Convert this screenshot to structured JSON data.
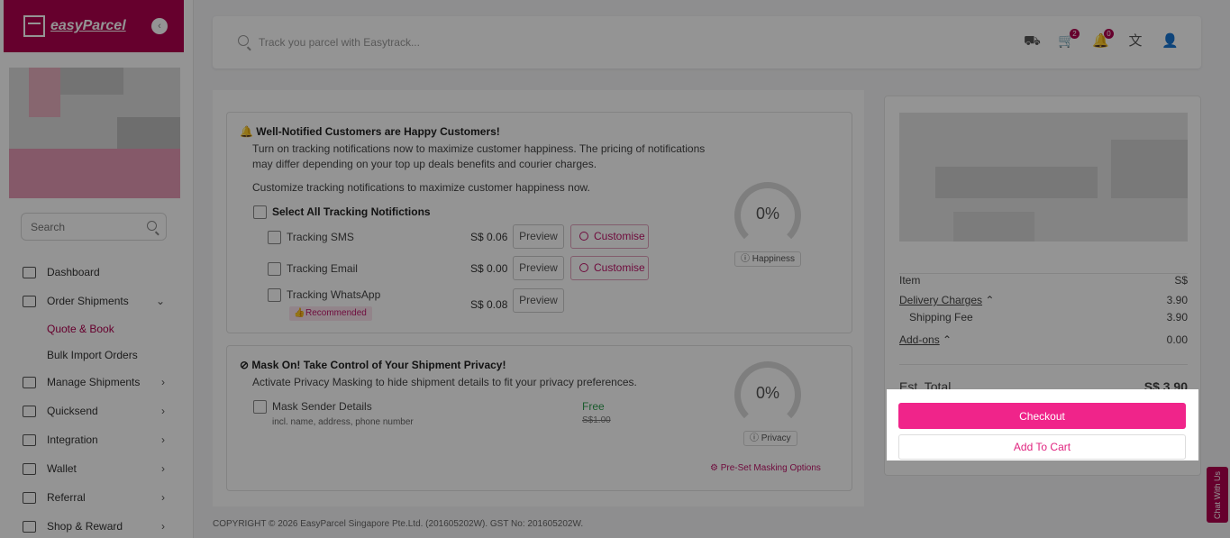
{
  "brand": {
    "logo_text": "easyParcel"
  },
  "sidebar": {
    "search_placeholder": "Search",
    "items": [
      {
        "label": "Dashboard",
        "icon": "chart-icon"
      },
      {
        "label": "Order Shipments",
        "icon": "truck-icon",
        "expanded": true
      },
      {
        "label": "Manage Shipments",
        "icon": "box-icon"
      },
      {
        "label": "Quicksend",
        "icon": "quicksend-icon"
      },
      {
        "label": "Integration",
        "icon": "link-icon"
      },
      {
        "label": "Wallet",
        "icon": "wallet-icon"
      },
      {
        "label": "Referral",
        "icon": "user-add-icon"
      },
      {
        "label": "Shop & Reward",
        "icon": "bag-icon"
      }
    ],
    "sub_items": [
      {
        "label": "Quote & Book",
        "active": true
      },
      {
        "label": "Bulk Import Orders",
        "active": false
      }
    ]
  },
  "topbar": {
    "search_placeholder": "Track you parcel with Easytrack...",
    "cart_count": "2",
    "notification_count": "0"
  },
  "notifications_panel": {
    "title": "Well-Notified Customers are Happy Customers!",
    "desc_line1": "Turn on tracking notifications now to maximize customer happiness. The pricing of notifications",
    "desc_line2": "may differ depending on your top up deals benefits and courier charges.",
    "customize_text": "Customize tracking notifications to maximize customer happiness now.",
    "select_all": "Select All Tracking Notifictions",
    "options": [
      {
        "label": "Tracking SMS",
        "price": "S$ 0.06",
        "preview": "Preview",
        "customise": "Customise"
      },
      {
        "label": "Tracking Email",
        "price": "S$ 0.00",
        "preview": "Preview",
        "customise": "Customise"
      },
      {
        "label": "Tracking WhatsApp",
        "price": "S$ 0.08",
        "preview": "Preview",
        "badge": "Recommended"
      }
    ],
    "gauge_value": "0%",
    "gauge_label": "Happiness"
  },
  "privacy_panel": {
    "title": "Mask On! Take Control of Your Shipment Privacy!",
    "desc": "Activate Privacy Masking to hide shipment details to fit your privacy preferences.",
    "option_label": "Mask Sender Details",
    "option_sub": "incl. name, address, phone number",
    "price_free": "Free",
    "price_old": "S$1.00",
    "gauge_value": "0%",
    "gauge_label": "Privacy",
    "preset_link": "Pre-Set Masking Options"
  },
  "summary": {
    "item_label": "Item",
    "currency": "S$",
    "delivery_label": "Delivery Charges",
    "delivery_value": "3.90",
    "shipping_label": "Shipping Fee",
    "shipping_value": "3.90",
    "addons_label": "Add-ons",
    "addons_value": "0.00",
    "total_label": "Est. Total",
    "total_value": "S$ 3.90",
    "checkout_label": "Checkout",
    "cart_label": "Add To Cart"
  },
  "footer": {
    "copyright": "COPYRIGHT © 2026 EasyParcel Singapore Pte.Ltd. (201605202W). GST No: 201605202W."
  },
  "chat": {
    "label": "Chat With Us"
  },
  "colors": {
    "brand": "#b0004f",
    "accent": "#f0248a"
  }
}
